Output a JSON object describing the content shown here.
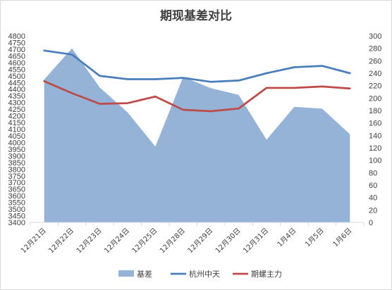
{
  "chart_data": {
    "type": "area",
    "title": "期现基差对比",
    "categories": [
      "12月21日",
      "12月22日",
      "12月23日",
      "12月24日",
      "12月25日",
      "12月28日",
      "12月29日",
      "12月30日",
      "12月31日",
      "1月4日",
      "1月5日",
      "1月6日"
    ],
    "left_axis": {
      "min": 3400,
      "max": 4800,
      "step": 50
    },
    "right_axis": {
      "min": 0,
      "max": 300,
      "step": 20
    },
    "grid": false,
    "legend_position": "bottom",
    "series": [
      {
        "name": "基差",
        "type": "area",
        "axis": "right",
        "color": "#95b3d7",
        "values": [
          230,
          280,
          217,
          177,
          122,
          234,
          216,
          205,
          133,
          186,
          183,
          142
        ]
      },
      {
        "name": "杭州中天",
        "type": "line",
        "axis": "left",
        "color": "#4a7ebb",
        "values": [
          4690,
          4660,
          4500,
          4475,
          4475,
          4485,
          4455,
          4465,
          4520,
          4565,
          4575,
          4520
        ]
      },
      {
        "name": "期螺主力",
        "type": "line",
        "axis": "left",
        "color": "#be4b48",
        "values": [
          4460,
          4370,
          4290,
          4295,
          4345,
          4245,
          4235,
          4255,
          4410,
          4410,
          4420,
          4405
        ]
      }
    ]
  }
}
